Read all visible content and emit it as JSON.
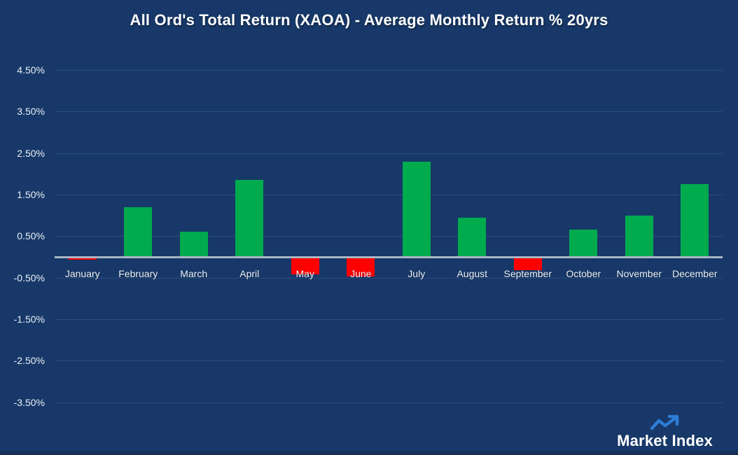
{
  "page": {
    "background_color": "#173868",
    "bottom_edge_color": "#152f57"
  },
  "chart_data": {
    "type": "bar",
    "title": "All Ord's Total Return (XAOA) - Average Monthly Return % 20yrs",
    "categories": [
      "January",
      "February",
      "March",
      "April",
      "May",
      "June",
      "July",
      "August",
      "September",
      "October",
      "November",
      "December"
    ],
    "values": [
      -0.05,
      1.2,
      0.6,
      1.85,
      -0.4,
      -0.45,
      2.3,
      0.95,
      -0.3,
      0.65,
      1.0,
      1.75
    ],
    "value_unit": "%",
    "xlabel": "",
    "ylabel": "",
    "y_ticks": [
      4.5,
      3.5,
      2.5,
      1.5,
      0.5,
      -0.5,
      -1.5,
      -2.5,
      -3.5
    ],
    "ylim": [
      -4.0,
      5.0
    ],
    "grid": true,
    "legend": "none",
    "colors": {
      "positive": "#00AB4E",
      "negative": "#FF0000",
      "gridline": "#2B4C7E",
      "zero_axis": "#A9B5C4",
      "axis_text": "#EAF0F6",
      "title_text": "#FFFFFF"
    }
  },
  "logo": {
    "text": "Market Index",
    "trend_arrow_color": "#2E7CD6"
  }
}
